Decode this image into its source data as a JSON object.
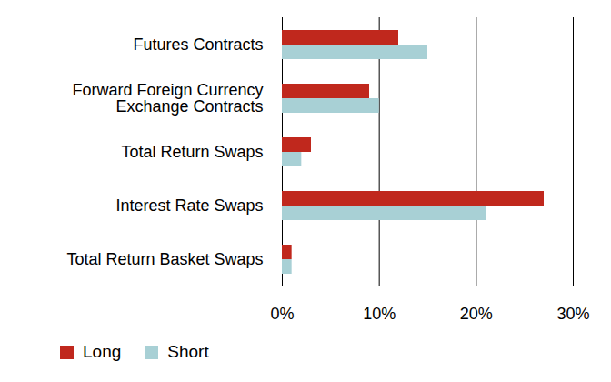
{
  "chart_data": {
    "type": "bar",
    "orientation": "horizontal",
    "categories": [
      "Futures Contracts",
      "Forward Foreign Currency\nExchange Contracts",
      "Total Return Swaps",
      "Interest Rate Swaps",
      "Total Return Basket Swaps"
    ],
    "series": [
      {
        "name": "Long",
        "color": "#c0281d",
        "values": [
          12,
          9,
          3,
          27,
          1
        ]
      },
      {
        "name": "Short",
        "color": "#a8d0d5",
        "values": [
          15,
          10,
          2,
          21,
          1
        ]
      }
    ],
    "xlim": [
      0,
      30
    ],
    "xticks": [
      {
        "value": 0,
        "label": "0%"
      },
      {
        "value": 10,
        "label": "10%"
      },
      {
        "value": 20,
        "label": "20%"
      },
      {
        "value": 30,
        "label": "30%"
      }
    ],
    "grid": true,
    "legend": "bottom-left"
  }
}
